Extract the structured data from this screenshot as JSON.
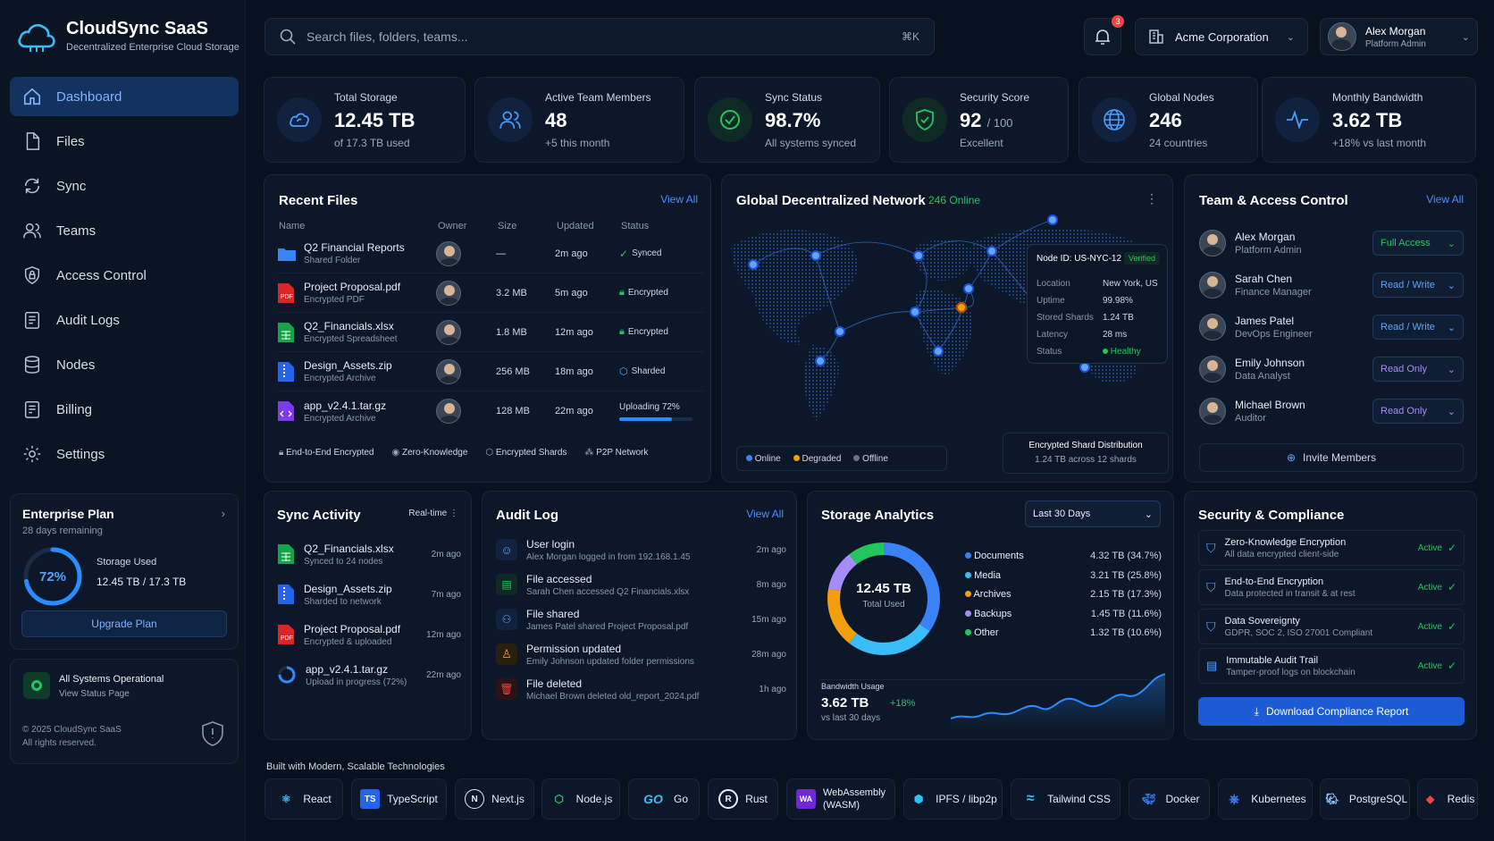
{
  "brand": {
    "title": "CloudSync SaaS",
    "subtitle": "Decentralized Enterprise Cloud Storage"
  },
  "nav": [
    "Dashboard",
    "Files",
    "Sync",
    "Teams",
    "Access Control",
    "Audit Logs",
    "Nodes",
    "Billing",
    "Settings"
  ],
  "plan": {
    "title": "Enterprise Plan",
    "remaining": "28 days remaining",
    "percent_label": "72%",
    "percent": 0.72,
    "storage_label": "Storage Used",
    "storage_value": "12.45 TB / 17.3 TB",
    "upgrade": "Upgrade Plan"
  },
  "system_status": {
    "title": "All Systems Operational",
    "link": "View Status Page",
    "copyright": "© 2025 CloudSync SaaS",
    "rights": "All rights reserved."
  },
  "search": {
    "placeholder": "Search files, folders, teams...",
    "shortcut": "⌘K"
  },
  "notifications": {
    "count": "3"
  },
  "org": {
    "name": "Acme Corporation"
  },
  "user": {
    "name": "Alex Morgan",
    "role": "Platform Admin"
  },
  "stats": [
    {
      "label": "Total Storage",
      "value": "12.45 TB",
      "unit": "",
      "sub": "of 17.3 TB used"
    },
    {
      "label": "Active Team Members",
      "value": "48",
      "unit": "",
      "sub": "+5 this month"
    },
    {
      "label": "Sync Status",
      "value": "98.7%",
      "unit": "",
      "sub": "All systems synced"
    },
    {
      "label": "Security Score",
      "value": "92",
      "unit": "/ 100",
      "sub": "Excellent"
    },
    {
      "label": "Global Nodes",
      "value": "246",
      "unit": "",
      "sub": "24 countries"
    },
    {
      "label": "Monthly Bandwidth",
      "value": "3.62 TB",
      "unit": "",
      "sub": "+18% vs last month"
    }
  ],
  "recent_files": {
    "title": "Recent Files",
    "view_all": "View All",
    "columns": [
      "Name",
      "Owner",
      "Size",
      "Updated",
      "Status"
    ],
    "rows": [
      {
        "name": "Q2 Financial Reports",
        "type": "Shared Folder",
        "size": "—",
        "updated": "2m ago",
        "status": "Synced"
      },
      {
        "name": "Project Proposal.pdf",
        "type": "Encrypted PDF",
        "size": "3.2 MB",
        "updated": "5m ago",
        "status": "Encrypted"
      },
      {
        "name": "Q2_Financials.xlsx",
        "type": "Encrypted Spreadsheet",
        "size": "1.8 MB",
        "updated": "12m ago",
        "status": "Encrypted"
      },
      {
        "name": "Design_Assets.zip",
        "type": "Encrypted Archive",
        "size": "256 MB",
        "updated": "18m ago",
        "status": "Sharded"
      },
      {
        "name": "app_v2.4.1.tar.gz",
        "type": "Encrypted Archive",
        "size": "128 MB",
        "updated": "22m ago",
        "status": "Uploading 72%",
        "progress": 0.72
      }
    ],
    "features": [
      "End-to-End Encrypted",
      "Zero-Knowledge",
      "Encrypted Shards",
      "P2P Network"
    ]
  },
  "network": {
    "title": "Global Decentralized Network",
    "online": "246 Online",
    "node": {
      "id": "Node ID: US-NYC-12",
      "badge": "Verified",
      "fields": [
        [
          "Location",
          "New York, US"
        ],
        [
          "Uptime",
          "99.98%"
        ],
        [
          "Stored Shards",
          "1.24 TB"
        ],
        [
          "Latency",
          "28 ms"
        ],
        [
          "Status",
          "Healthy"
        ]
      ]
    },
    "legend": [
      "Online",
      "Degraded",
      "Offline"
    ],
    "shard_title": "Encrypted Shard Distribution",
    "shard_value": "1.24 TB across 12 shards"
  },
  "team": {
    "title": "Team & Access Control",
    "view_all": "View All",
    "invite": "Invite Members",
    "members": [
      {
        "name": "Alex Morgan",
        "role": "Platform Admin",
        "access": "Full Access"
      },
      {
        "name": "Sarah Chen",
        "role": "Finance Manager",
        "access": "Read / Write"
      },
      {
        "name": "James Patel",
        "role": "DevOps Engineer",
        "access": "Read / Write"
      },
      {
        "name": "Emily Johnson",
        "role": "Data Analyst",
        "access": "Read Only"
      },
      {
        "name": "Michael Brown",
        "role": "Auditor",
        "access": "Read Only"
      }
    ]
  },
  "sync": {
    "title": "Sync Activity",
    "mode": "Real-time",
    "items": [
      {
        "name": "Q2_Financials.xlsx",
        "desc": "Synced to 24 nodes",
        "time": "2m ago"
      },
      {
        "name": "Design_Assets.zip",
        "desc": "Sharded to network",
        "time": "7m ago"
      },
      {
        "name": "Project Proposal.pdf",
        "desc": "Encrypted & uploaded",
        "time": "12m ago"
      },
      {
        "name": "app_v2.4.1.tar.gz",
        "desc": "Upload in progress (72%)",
        "time": "22m ago"
      }
    ]
  },
  "audit": {
    "title": "Audit Log",
    "view_all": "View All",
    "items": [
      {
        "title": "User login",
        "desc": "Alex Morgan logged in from 192.168.1.45",
        "time": "2m ago"
      },
      {
        "title": "File accessed",
        "desc": "Sarah Chen accessed Q2 Financials.xlsx",
        "time": "8m ago"
      },
      {
        "title": "File shared",
        "desc": "James Patel shared Project Proposal.pdf",
        "time": "15m ago"
      },
      {
        "title": "Permission updated",
        "desc": "Emily Johnson updated folder permissions",
        "time": "28m ago"
      },
      {
        "title": "File deleted",
        "desc": "Michael Brown deleted old_report_2024.pdf",
        "time": "1h ago"
      }
    ]
  },
  "analytics": {
    "title": "Storage Analytics",
    "range": "Last 30 Days",
    "center_value": "12.45 TB",
    "center_label": "Total Used",
    "categories": [
      {
        "name": "Documents",
        "value": "4.32 TB (34.7%)",
        "pct": 34.7,
        "color": "#3b82f6"
      },
      {
        "name": "Media",
        "value": "3.21 TB (25.8%)",
        "pct": 25.8,
        "color": "#38bdf8"
      },
      {
        "name": "Archives",
        "value": "2.15 TB (17.3%)",
        "pct": 17.3,
        "color": "#f59e0b"
      },
      {
        "name": "Backups",
        "value": "1.45 TB (11.6%)",
        "pct": 11.6,
        "color": "#a78bfa"
      },
      {
        "name": "Other",
        "value": "1.32 TB (10.6%)",
        "pct": 10.6,
        "color": "#22c55e"
      }
    ],
    "bandwidth_label": "Bandwidth Usage",
    "bandwidth_value": "3.62 TB",
    "bandwidth_change": "+18%",
    "bandwidth_sub": "vs last 30 days"
  },
  "compliance": {
    "title": "Security & Compliance",
    "button": "Download Compliance Report",
    "items": [
      {
        "title": "Zero-Knowledge Encryption",
        "desc": "All data encrypted client-side",
        "status": "Active"
      },
      {
        "title": "End-to-End Encryption",
        "desc": "Data protected in transit & at rest",
        "status": "Active"
      },
      {
        "title": "Data Sovereignty",
        "desc": "GDPR, SOC 2, ISO 27001 Compliant",
        "status": "Active"
      },
      {
        "title": "Immutable Audit Trail",
        "desc": "Tamper-proof logs on blockchain",
        "status": "Active"
      }
    ]
  },
  "tech": {
    "title": "Built with Modern, Scalable Technologies",
    "items": [
      "React",
      "TypeScript",
      "Next.js",
      "Node.js",
      "Go",
      "Rust",
      "WebAssembly",
      "(WASM)",
      "IPFS / libp2p",
      "Tailwind CSS",
      "Docker",
      "Kubernetes",
      "PostgreSQL",
      "Redis"
    ]
  }
}
